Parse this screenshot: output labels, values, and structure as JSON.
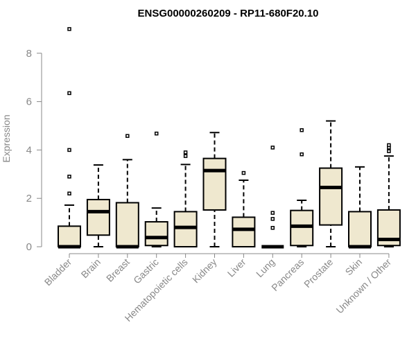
{
  "chart_data": {
    "type": "box",
    "title": "ENSG00000260209 - RP11-680F20.10",
    "xlabel": "",
    "ylabel": "Expression",
    "ylim": [
      0,
      9.2
    ],
    "yticks": [
      0,
      2,
      4,
      6,
      8
    ],
    "colors": {
      "box_fill": "#efe8cf",
      "box_stroke": "#000000",
      "axis": "#888888",
      "label": "#888888"
    },
    "categories": [
      "Bladder",
      "Brain",
      "Breast",
      "Gastric",
      "Hematopoietic cells",
      "Kidney",
      "Liver",
      "Lung",
      "Pancreas",
      "Prostate",
      "Skin",
      "Unknown / Other"
    ],
    "boxes": [
      {
        "min": 0,
        "q1": 0,
        "median": 0,
        "q3": 0.85,
        "max": 1.72,
        "outliers": [
          2.2,
          2.9,
          4.0,
          6.35,
          9.0
        ]
      },
      {
        "min": 0,
        "q1": 0.48,
        "median": 1.45,
        "q3": 1.95,
        "max": 3.38,
        "outliers": []
      },
      {
        "min": 0,
        "q1": 0,
        "median": 0,
        "q3": 1.82,
        "max": 3.6,
        "outliers": [
          4.58
        ]
      },
      {
        "min": 0,
        "q1": 0.05,
        "median": 0.38,
        "q3": 1.03,
        "max": 1.6,
        "outliers": [
          4.68
        ]
      },
      {
        "min": 0,
        "q1": 0,
        "median": 0.8,
        "q3": 1.45,
        "max": 3.4,
        "outliers": [
          3.75,
          3.9
        ]
      },
      {
        "min": 0,
        "q1": 1.52,
        "median": 3.15,
        "q3": 3.65,
        "max": 4.72,
        "outliers": []
      },
      {
        "min": 0,
        "q1": 0,
        "median": 0.72,
        "q3": 1.22,
        "max": 2.75,
        "outliers": [
          3.05
        ]
      },
      {
        "min": 0,
        "q1": 0,
        "median": 0,
        "q3": 0,
        "max": 0,
        "outliers": [
          0.78,
          1.15,
          1.4,
          4.1
        ]
      },
      {
        "min": 0,
        "q1": 0.05,
        "median": 0.85,
        "q3": 1.5,
        "max": 1.92,
        "outliers": [
          3.82,
          4.82
        ]
      },
      {
        "min": 0,
        "q1": 0.9,
        "median": 2.45,
        "q3": 3.25,
        "max": 5.2,
        "outliers": []
      },
      {
        "min": 0,
        "q1": 0,
        "median": 0,
        "q3": 1.45,
        "max": 3.3,
        "outliers": []
      },
      {
        "min": 0,
        "q1": 0.05,
        "median": 0.3,
        "q3": 1.52,
        "max": 3.75,
        "outliers": [
          3.95,
          4.1,
          4.2
        ]
      }
    ]
  }
}
